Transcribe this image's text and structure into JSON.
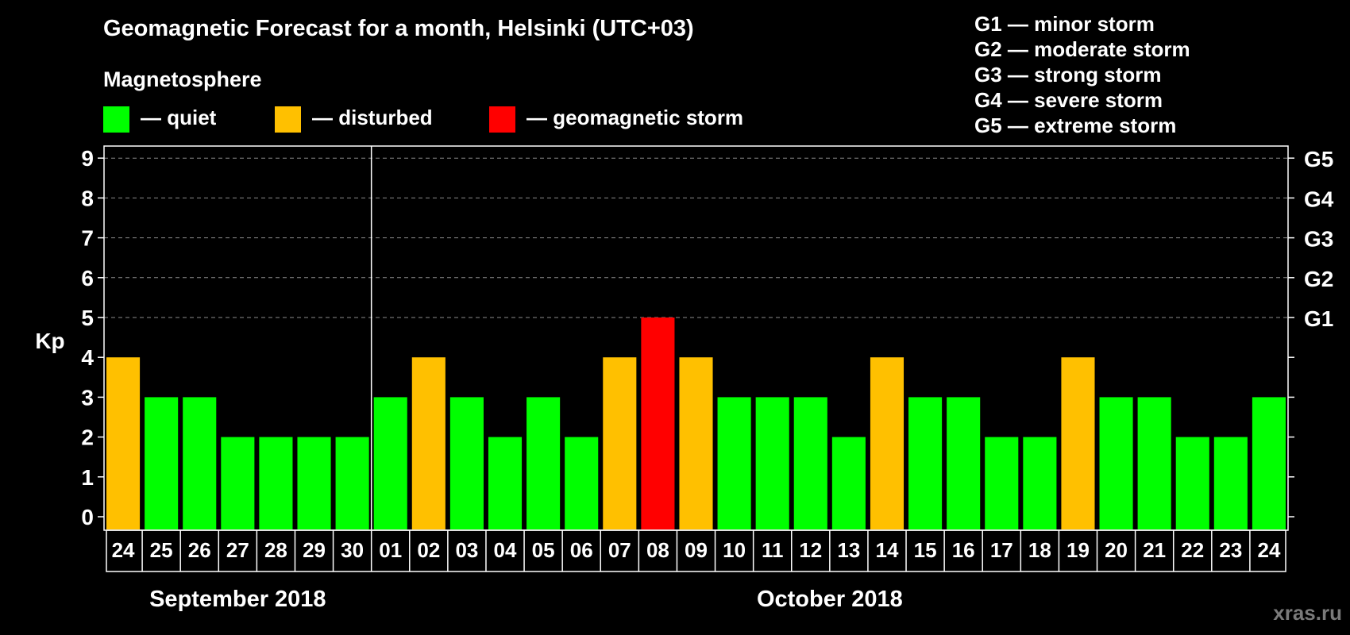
{
  "title": "Geomagnetic Forecast for a month, Helsinki (UTC+03)",
  "magnetosphere_heading": "Magnetosphere",
  "legend": [
    {
      "label": "— quiet",
      "color": "#00ff00"
    },
    {
      "label": "— disturbed",
      "color": "#ffc000"
    },
    {
      "label": "— geomagnetic storm",
      "color": "#ff0000"
    }
  ],
  "storm_scale": [
    "G1 — minor storm",
    "G2 — moderate storm",
    "G3 — strong storm",
    "G4 — severe storm",
    "G5 — extreme storm"
  ],
  "watermark": "xras.ru",
  "chart_data": {
    "type": "bar",
    "ylabel": "Kp",
    "ylim": [
      0,
      9
    ],
    "yticks": [
      "0",
      "1",
      "2",
      "3",
      "4",
      "5",
      "6",
      "7",
      "8",
      "9"
    ],
    "right_axis": [
      {
        "kp": 5,
        "label": "G1"
      },
      {
        "kp": 6,
        "label": "G2"
      },
      {
        "kp": 7,
        "label": "G3"
      },
      {
        "kp": 8,
        "label": "G4"
      },
      {
        "kp": 9,
        "label": "G5"
      }
    ],
    "grid": "dashed horizontal lines at Kp 5–9",
    "month_labels": [
      {
        "label": "September 2018",
        "from": 0,
        "to": 6
      },
      {
        "label": "October 2018",
        "from": 7,
        "to": 30
      }
    ],
    "categories": [
      "24",
      "25",
      "26",
      "27",
      "28",
      "29",
      "30",
      "01",
      "02",
      "03",
      "04",
      "05",
      "06",
      "07",
      "08",
      "09",
      "10",
      "11",
      "12",
      "13",
      "14",
      "15",
      "16",
      "17",
      "18",
      "19",
      "20",
      "21",
      "22",
      "23",
      "24"
    ],
    "values": [
      4,
      3,
      3,
      2,
      2,
      2,
      2,
      3,
      4,
      3,
      2,
      3,
      2,
      4,
      5,
      4,
      3,
      3,
      3,
      2,
      4,
      3,
      3,
      2,
      2,
      4,
      3,
      3,
      2,
      2,
      3
    ],
    "status": [
      "disturbed",
      "quiet",
      "quiet",
      "quiet",
      "quiet",
      "quiet",
      "quiet",
      "quiet",
      "disturbed",
      "quiet",
      "quiet",
      "quiet",
      "quiet",
      "disturbed",
      "storm",
      "disturbed",
      "quiet",
      "quiet",
      "quiet",
      "quiet",
      "disturbed",
      "quiet",
      "quiet",
      "quiet",
      "quiet",
      "disturbed",
      "quiet",
      "quiet",
      "quiet",
      "quiet",
      "quiet"
    ],
    "colors": {
      "quiet": "#00ff00",
      "disturbed": "#ffc000",
      "storm": "#ff0000"
    }
  }
}
